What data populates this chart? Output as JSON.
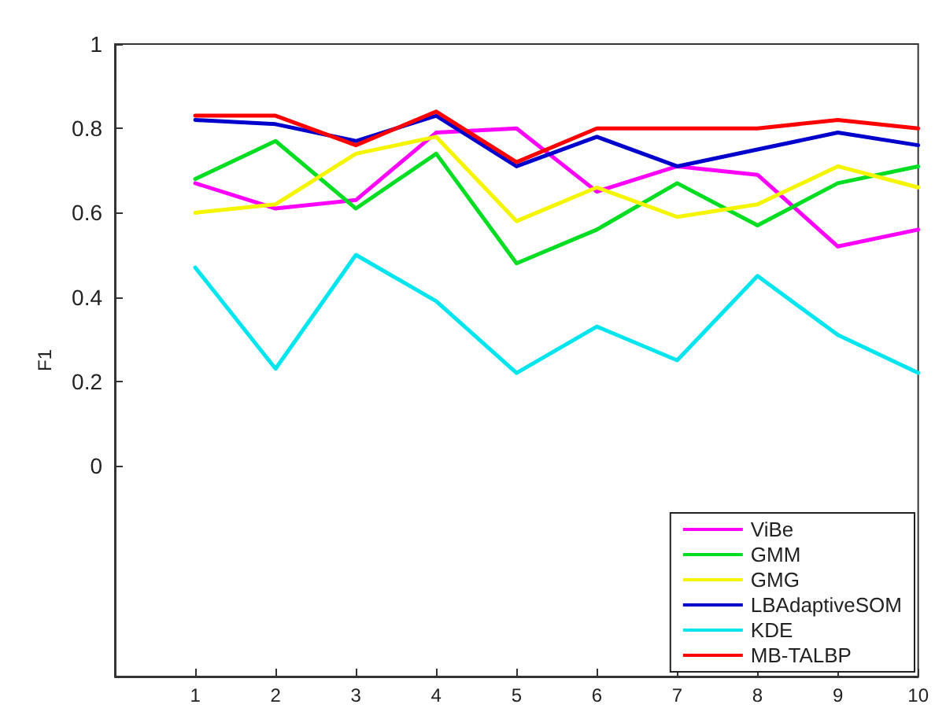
{
  "chart_data": {
    "type": "line",
    "ylabel": "F1",
    "x": [
      1,
      2,
      3,
      4,
      5,
      6,
      7,
      8,
      9,
      10
    ],
    "xlim": [
      0,
      10
    ],
    "xticks": [
      1,
      2,
      3,
      4,
      5,
      6,
      7,
      8,
      9,
      10
    ],
    "ylim": [
      -0.5,
      1
    ],
    "yticks": [
      0,
      0.2,
      0.4,
      0.6,
      0.8,
      1
    ],
    "grid": false,
    "legend": "bottom right",
    "marker": "none",
    "line_style": "solid",
    "series": [
      {
        "name": "ViBe",
        "color": "#ff00ff",
        "values": [
          0.67,
          0.61,
          0.63,
          0.79,
          0.8,
          0.65,
          0.71,
          0.69,
          0.52,
          0.56
        ]
      },
      {
        "name": "GMM",
        "color": "#00dd22",
        "values": [
          0.68,
          0.77,
          0.61,
          0.74,
          0.48,
          0.56,
          0.67,
          0.57,
          0.67,
          0.71
        ]
      },
      {
        "name": "GMG",
        "color": "#f5f500",
        "values": [
          0.6,
          0.62,
          0.74,
          0.78,
          0.58,
          0.66,
          0.59,
          0.62,
          0.71,
          0.66
        ]
      },
      {
        "name": "LBAdaptiveSOM",
        "color": "#0000cc",
        "values": [
          0.82,
          0.81,
          0.77,
          0.83,
          0.71,
          0.78,
          0.71,
          0.75,
          0.79,
          0.76
        ]
      },
      {
        "name": "KDE",
        "color": "#00e5ee",
        "values": [
          0.47,
          0.23,
          0.5,
          0.39,
          0.22,
          0.33,
          0.25,
          0.45,
          0.31,
          0.22
        ]
      },
      {
        "name": "MB-TALBP",
        "color": "#ff0000",
        "values": [
          0.83,
          0.83,
          0.76,
          0.84,
          0.72,
          0.8,
          0.8,
          0.8,
          0.82,
          0.8
        ]
      }
    ]
  }
}
